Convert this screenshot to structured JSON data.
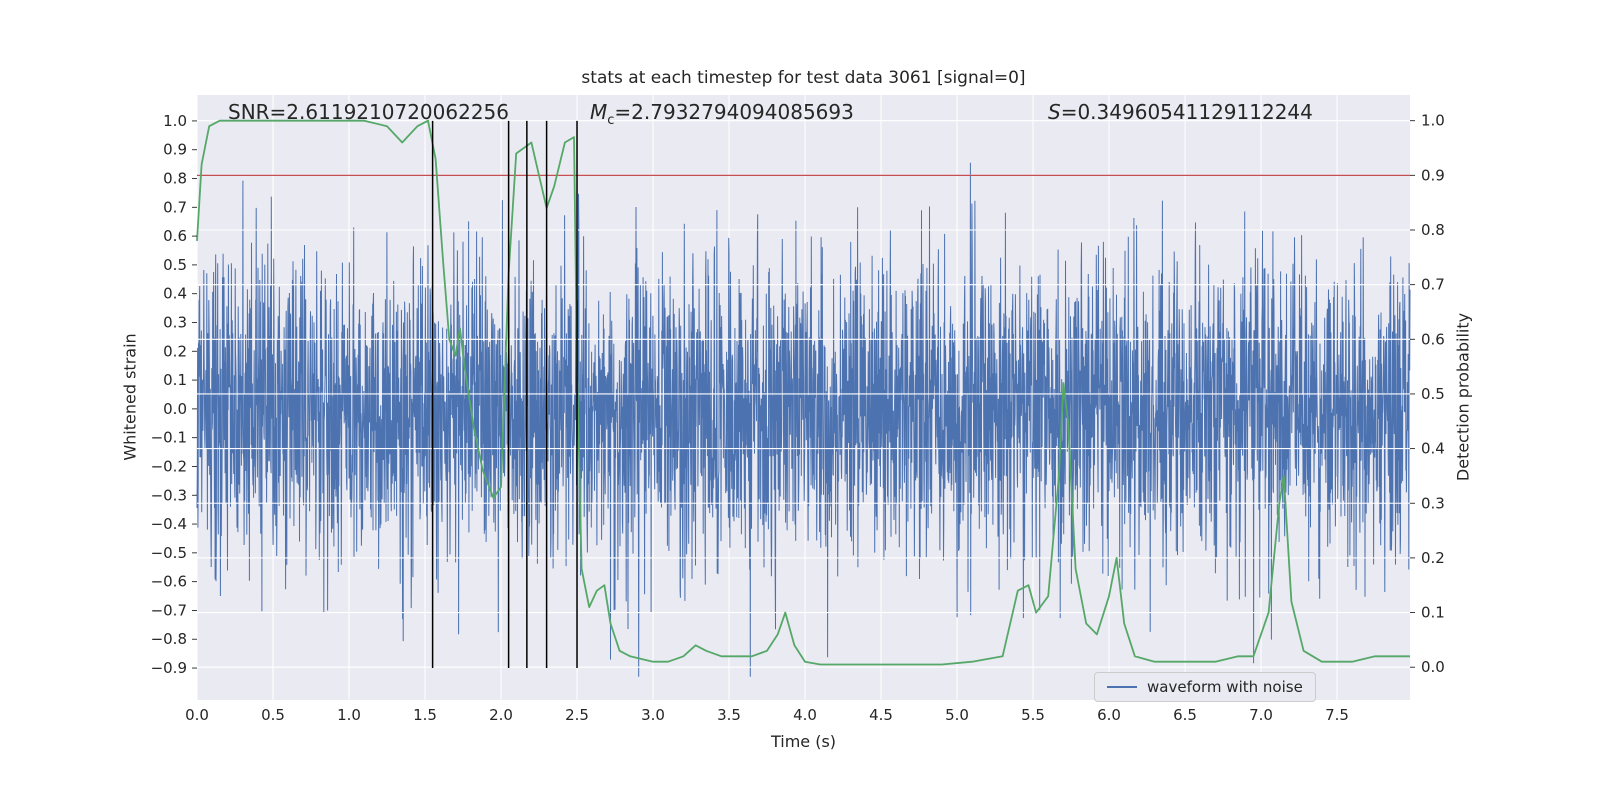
{
  "figure": {
    "background": "#ffffff",
    "axes_background": "#eaeaf2",
    "grid_color": "#ffffff"
  },
  "annotations": {
    "snr_text": "SNR=2.6119210720062256",
    "mc_var": "M",
    "mc_sub": "c",
    "mc_rest": "=2.7932794094085693",
    "s_var": "S",
    "s_rest": "=0.34960541129112244"
  },
  "chart_data": {
    "type": "line",
    "title": "stats at each timestep for test data 3061 [signal=0]",
    "xlabel": "Time (s)",
    "ylabel_left": "Whitened strain",
    "ylabel_right": "Detection probability",
    "xlim": [
      0,
      7.98
    ],
    "ylim_left": [
      -1.011,
      1.09
    ],
    "ylim_right": [
      -0.06,
      1.047
    ],
    "xticks": [
      0.0,
      0.5,
      1.0,
      1.5,
      2.0,
      2.5,
      3.0,
      3.5,
      4.0,
      4.5,
      5.0,
      5.5,
      6.0,
      6.5,
      7.0,
      7.5
    ],
    "yticks_left": [
      1.0,
      0.9,
      0.8,
      0.7,
      0.6,
      0.5,
      0.4,
      0.3,
      0.2,
      0.1,
      0.0,
      -0.1,
      -0.2,
      -0.3,
      -0.4,
      -0.5,
      -0.6,
      -0.7,
      -0.8,
      -0.9
    ],
    "yticks_right": [
      1.0,
      0.9,
      0.8,
      0.7,
      0.6,
      0.5,
      0.4,
      0.3,
      0.2,
      0.1,
      0.0
    ],
    "grid": {
      "show": true,
      "color": "#ffffff"
    },
    "colors": {
      "waveform": "#4c72b0",
      "detection": "#55a868",
      "threshold": "#c44e52",
      "event_lines": "#000000"
    },
    "threshold": {
      "axis": "right",
      "value": 0.9
    },
    "event_vlines": {
      "x": [
        1.55,
        2.05,
        2.17,
        2.3,
        2.5
      ],
      "ymin": -0.9,
      "ymax": 1.0
    },
    "waveform": {
      "label": "waveform with noise",
      "axis": "left",
      "generator": {
        "distribution": "gaussian",
        "mean": 0,
        "std": 0.26,
        "n": 4096,
        "seed": 3061,
        "clip_min": -0.93,
        "clip_max": 1.0
      }
    },
    "detection_probability": {
      "axis": "right",
      "points": [
        [
          0.0,
          0.78
        ],
        [
          0.03,
          0.92
        ],
        [
          0.08,
          0.99
        ],
        [
          0.15,
          1.0
        ],
        [
          0.5,
          1.0
        ],
        [
          0.9,
          1.0
        ],
        [
          1.1,
          1.0
        ],
        [
          1.25,
          0.99
        ],
        [
          1.35,
          0.96
        ],
        [
          1.45,
          0.99
        ],
        [
          1.52,
          1.0
        ],
        [
          1.57,
          0.93
        ],
        [
          1.62,
          0.74
        ],
        [
          1.66,
          0.6
        ],
        [
          1.7,
          0.57
        ],
        [
          1.73,
          0.62
        ],
        [
          1.76,
          0.55
        ],
        [
          1.82,
          0.44
        ],
        [
          1.88,
          0.36
        ],
        [
          1.95,
          0.31
        ],
        [
          2.0,
          0.33
        ],
        [
          2.05,
          0.72
        ],
        [
          2.1,
          0.94
        ],
        [
          2.15,
          0.95
        ],
        [
          2.2,
          0.96
        ],
        [
          2.25,
          0.9
        ],
        [
          2.3,
          0.84
        ],
        [
          2.35,
          0.88
        ],
        [
          2.42,
          0.96
        ],
        [
          2.48,
          0.97
        ],
        [
          2.5,
          0.55
        ],
        [
          2.53,
          0.18
        ],
        [
          2.58,
          0.11
        ],
        [
          2.63,
          0.14
        ],
        [
          2.68,
          0.15
        ],
        [
          2.72,
          0.08
        ],
        [
          2.78,
          0.03
        ],
        [
          2.85,
          0.02
        ],
        [
          3.0,
          0.01
        ],
        [
          3.1,
          0.01
        ],
        [
          3.2,
          0.02
        ],
        [
          3.28,
          0.04
        ],
        [
          3.35,
          0.03
        ],
        [
          3.45,
          0.02
        ],
        [
          3.55,
          0.02
        ],
        [
          3.65,
          0.02
        ],
        [
          3.75,
          0.03
        ],
        [
          3.82,
          0.06
        ],
        [
          3.87,
          0.1
        ],
        [
          3.93,
          0.04
        ],
        [
          4.0,
          0.01
        ],
        [
          4.1,
          0.005
        ],
        [
          4.3,
          0.005
        ],
        [
          4.6,
          0.005
        ],
        [
          4.9,
          0.005
        ],
        [
          5.1,
          0.01
        ],
        [
          5.3,
          0.02
        ],
        [
          5.4,
          0.14
        ],
        [
          5.47,
          0.15
        ],
        [
          5.52,
          0.1
        ],
        [
          5.6,
          0.13
        ],
        [
          5.67,
          0.35
        ],
        [
          5.7,
          0.52
        ],
        [
          5.73,
          0.45
        ],
        [
          5.78,
          0.18
        ],
        [
          5.85,
          0.08
        ],
        [
          5.92,
          0.06
        ],
        [
          6.0,
          0.13
        ],
        [
          6.05,
          0.2
        ],
        [
          6.1,
          0.08
        ],
        [
          6.17,
          0.02
        ],
        [
          6.3,
          0.01
        ],
        [
          6.5,
          0.01
        ],
        [
          6.7,
          0.01
        ],
        [
          6.85,
          0.02
        ],
        [
          6.95,
          0.02
        ],
        [
          7.05,
          0.1
        ],
        [
          7.12,
          0.3
        ],
        [
          7.15,
          0.35
        ],
        [
          7.2,
          0.12
        ],
        [
          7.28,
          0.03
        ],
        [
          7.4,
          0.01
        ],
        [
          7.6,
          0.01
        ],
        [
          7.75,
          0.02
        ],
        [
          7.9,
          0.02
        ],
        [
          7.98,
          0.02
        ]
      ]
    },
    "legend": {
      "label": "waveform with noise",
      "position": "lower right"
    }
  }
}
